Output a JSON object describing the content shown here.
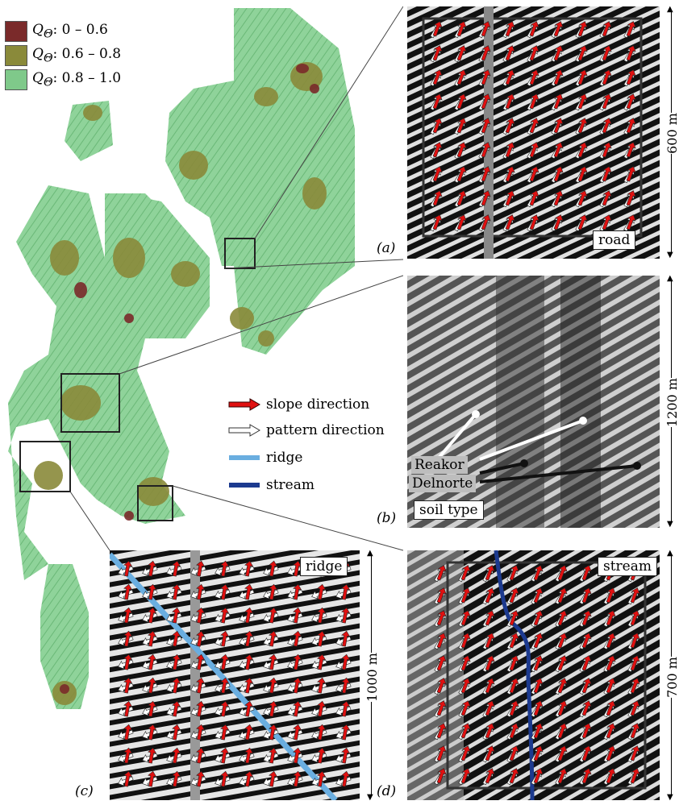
{
  "quality_key": {
    "items": [
      {
        "label": "Q",
        "sub": "Θ",
        "range": ": 0 – 0.6",
        "color": "#7a2a2a"
      },
      {
        "label": "Q",
        "sub": "Θ",
        "range": ": 0.6 – 0.8",
        "color": "#8a8a3a"
      },
      {
        "label": "Q",
        "sub": "Θ",
        "range": ": 0.8 – 1.0",
        "color": "#7fc98a"
      }
    ]
  },
  "legend": {
    "slope": "slope direction",
    "pattern": "pattern direction",
    "ridge": "ridge",
    "stream": "stream",
    "slope_color": "#e01010",
    "pattern_color": "#ffffff",
    "ridge_color": "#6aaee0",
    "stream_color": "#1c3a8f"
  },
  "panels": {
    "a": {
      "label": "(a)",
      "tag": "road",
      "scale": "600 m"
    },
    "b": {
      "label": "(b)",
      "tag": "soil type",
      "soil1": "Reakor",
      "soil2": "Delnorte",
      "scale": "1200 m"
    },
    "c": {
      "label": "(c)",
      "tag": "ridge",
      "scale": "1000 m"
    },
    "d": {
      "label": "(d)",
      "tag": "stream",
      "scale": "700 m"
    }
  }
}
